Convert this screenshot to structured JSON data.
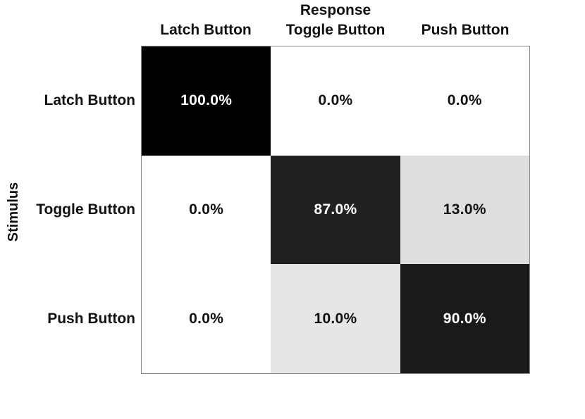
{
  "chart_data": {
    "type": "heatmap",
    "subtype": "confusion-matrix",
    "title": "Response",
    "xlabel": "Response",
    "ylabel": "Stimulus",
    "x_categories": [
      "Latch Button",
      "Toggle Button",
      "Push Button"
    ],
    "y_categories": [
      "Latch Button",
      "Toggle Button",
      "Push Button"
    ],
    "values_percent": [
      [
        100.0,
        0.0,
        0.0
      ],
      [
        0.0,
        87.0,
        13.0
      ],
      [
        0.0,
        10.0,
        90.0
      ]
    ],
    "cells": [
      [
        {
          "label": "100.0%",
          "bg": "#000000",
          "fg": "#ffffff"
        },
        {
          "label": "0.0%",
          "bg": "#ffffff",
          "fg": "#111111"
        },
        {
          "label": "0.0%",
          "bg": "#ffffff",
          "fg": "#111111"
        }
      ],
      [
        {
          "label": "0.0%",
          "bg": "#ffffff",
          "fg": "#111111"
        },
        {
          "label": "87.0%",
          "bg": "#212121",
          "fg": "#ffffff"
        },
        {
          "label": "13.0%",
          "bg": "#dedede",
          "fg": "#111111"
        }
      ],
      [
        {
          "label": "0.0%",
          "bg": "#ffffff",
          "fg": "#111111"
        },
        {
          "label": "10.0%",
          "bg": "#e6e6e6",
          "fg": "#111111"
        },
        {
          "label": "90.0%",
          "bg": "#1a1a1a",
          "fg": "#ffffff"
        }
      ]
    ],
    "colormap": "reversed-gray (0% = white, 100% = black)",
    "grid": false,
    "legend": false,
    "border_color": "#8a8a8a",
    "text_color": "#111111"
  }
}
